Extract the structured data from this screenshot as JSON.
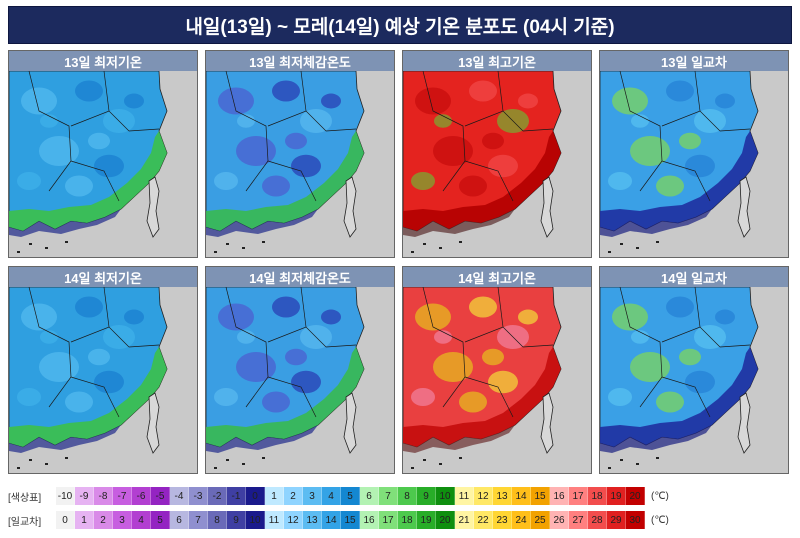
{
  "title": "내일(13일) ~ 모레(14일) 예상 기온 분포도 (04시 기준)",
  "panels": [
    {
      "label": "13일 최저기온",
      "scheme": "cold"
    },
    {
      "label": "13일 최저체감온도",
      "scheme": "colder"
    },
    {
      "label": "13일 최고기온",
      "scheme": "hot"
    },
    {
      "label": "13일 일교차",
      "scheme": "range"
    },
    {
      "label": "14일 최저기온",
      "scheme": "cold"
    },
    {
      "label": "14일 최저체감온도",
      "scheme": "colder"
    },
    {
      "label": "14일 최고기온",
      "scheme": "warm"
    },
    {
      "label": "14일 일교차",
      "scheme": "range"
    }
  ],
  "legend": {
    "temp_label": "[색상표]",
    "range_label": "[일교차]",
    "unit": "(℃)",
    "temp_values": [
      "-10",
      "-9",
      "-8",
      "-7",
      "-6",
      "-5",
      "-4",
      "-3",
      "-2",
      "-1",
      "0",
      "1",
      "2",
      "3",
      "4",
      "5",
      "6",
      "7",
      "8",
      "9",
      "10",
      "11",
      "12",
      "13",
      "14",
      "15",
      "16",
      "17",
      "18",
      "19",
      "20"
    ],
    "range_values": [
      "0",
      "1",
      "2",
      "3",
      "4",
      "5",
      "6",
      "7",
      "8",
      "9",
      "10",
      "11",
      "12",
      "13",
      "14",
      "15",
      "16",
      "17",
      "18",
      "19",
      "20",
      "21",
      "22",
      "23",
      "24",
      "25",
      "26",
      "27",
      "28",
      "29",
      "30"
    ],
    "colors": [
      "#f2f2f2",
      "#e6b3f2",
      "#d98ae8",
      "#c75ee0",
      "#b23fd1",
      "#9424c2",
      "#b7b7e0",
      "#8f8fcf",
      "#6a6ab8",
      "#3f3fa3",
      "#1a1a8c",
      "#bfe9ff",
      "#8fd4ff",
      "#5cbcf2",
      "#33a3e6",
      "#1487d1",
      "#b3f2b3",
      "#80e07a",
      "#4dc94d",
      "#28ad28",
      "#0f8f0f",
      "#fff5a3",
      "#ffe866",
      "#ffd633",
      "#ffbf1a",
      "#f2a200",
      "#ffb3b3",
      "#ff8080",
      "#f24d4d",
      "#e02020",
      "#c20000"
    ]
  }
}
